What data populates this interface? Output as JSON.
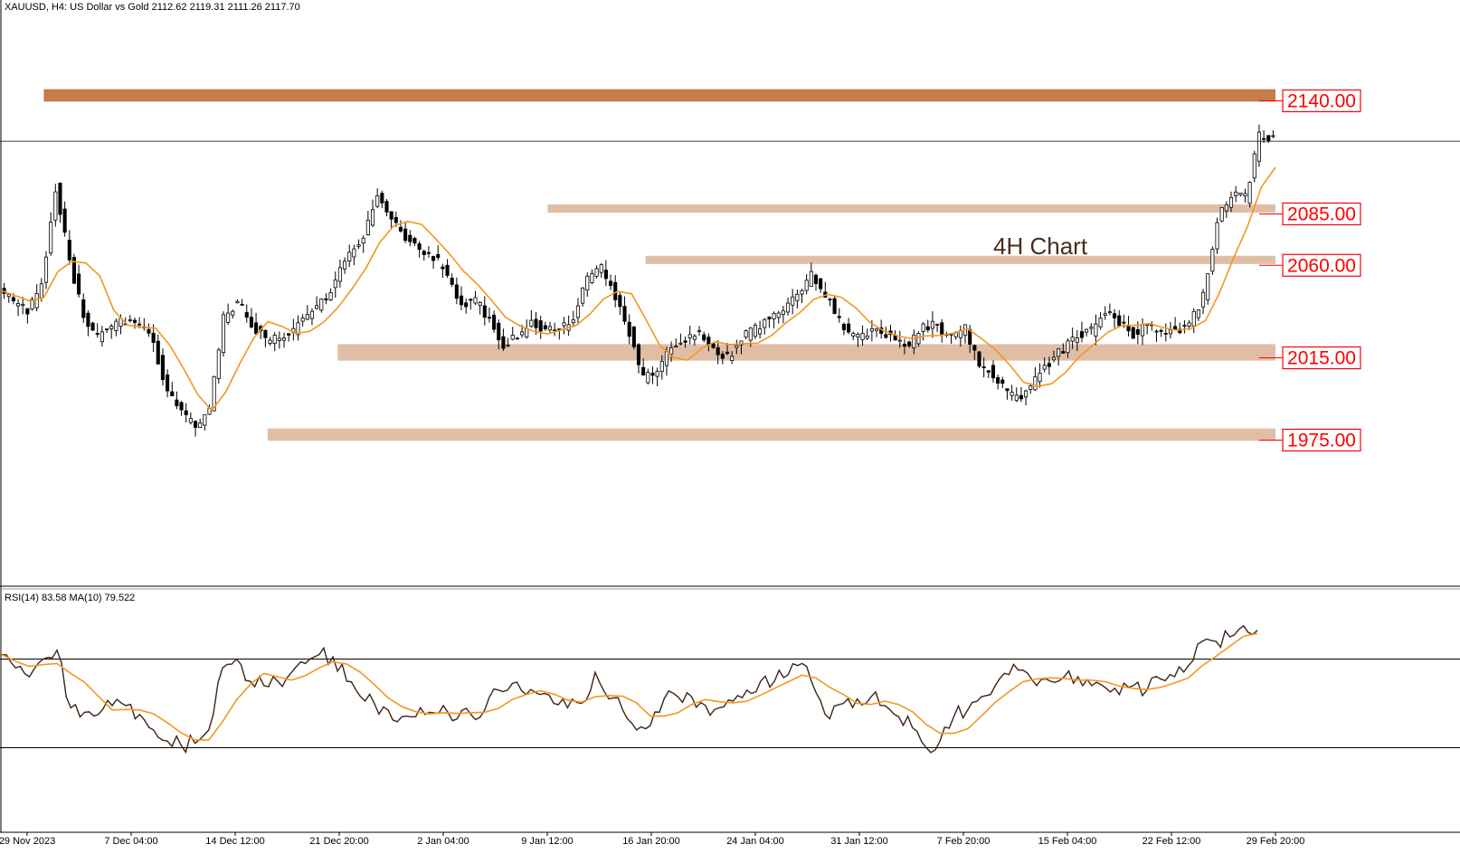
{
  "header": {
    "price_info": "XAUUSD, H4:  US Dollar vs Gold  2112.62 2119.31 2111.26 2117.70"
  },
  "annotation": {
    "label": "4H Chart"
  },
  "rsi_panel": {
    "header": "RSI(14) 83.58 MA(10) 79.522"
  },
  "colors": {
    "background": "#ffffff",
    "candle": "#000000",
    "ma": "#f5961e",
    "zone_light": "#e0bea6",
    "zone_dark": "#c67b4a",
    "label_text": "#ff0000",
    "label_border": "#ff0000",
    "annotation_text": "#4a2d1a",
    "rsi_line": "#3c2414"
  },
  "chart_data": [
    {
      "type": "candlestick",
      "symbol": "XAUUSD",
      "timeframe": "H4",
      "ylim": [
        1940,
        2160
      ],
      "x_tick_labels": [
        "29 Nov 2023",
        "7 Dec 04:00",
        "14 Dec 12:00",
        "21 Dec 20:00",
        "2 Jan 04:00",
        "9 Jan 12:00",
        "16 Jan 20:00",
        "24 Jan 04:00",
        "31 Jan 12:00",
        "7 Feb 20:00",
        "15 Feb 04:00",
        "22 Feb 12:00",
        "29 Feb 20:00"
      ],
      "current_price": 2117.7,
      "zones": [
        {
          "label": "2140.00",
          "price": 2140.0,
          "thickness": 6,
          "style": "dark",
          "start_index": 3
        },
        {
          "label": "2085.00",
          "price": 2085.0,
          "thickness": 4,
          "style": "light",
          "start_index": 39
        },
        {
          "label": "2060.00",
          "price": 2060.0,
          "thickness": 4,
          "style": "light",
          "start_index": 46
        },
        {
          "label": "2015.00",
          "price": 2015.0,
          "thickness": 8,
          "style": "light",
          "start_index": 24
        },
        {
          "label": "1975.00",
          "price": 1975.0,
          "thickness": 6,
          "style": "light",
          "start_index": 19
        }
      ],
      "closes": [
        2045,
        2040,
        2035,
        2047,
        2095,
        2060,
        2032,
        2022,
        2028,
        2031,
        2028,
        2020,
        1995,
        1985,
        1978,
        1989,
        2031,
        2040,
        2028,
        2021,
        2022,
        2026,
        2032,
        2039,
        2050,
        2062,
        2072,
        2090,
        2082,
        2071,
        2066,
        2062,
        2052,
        2038,
        2040,
        2031,
        2019,
        2022,
        2029,
        2026,
        2027,
        2030,
        2051,
        2056,
        2042,
        2025,
        2002,
        2005,
        2018,
        2020,
        2025,
        2018,
        2012,
        2022,
        2026,
        2033,
        2036,
        2042,
        2052,
        2043,
        2030,
        2022,
        2024,
        2026,
        2020,
        2017,
        2029,
        2027,
        2024,
        2026,
        2010,
        2005,
        1995,
        1992,
        2002,
        2010,
        2017,
        2023,
        2025,
        2034,
        2030,
        2024,
        2028,
        2026,
        2025,
        2028,
        2043,
        2080,
        2092,
        2090,
        2120,
        2118
      ]
    },
    {
      "type": "line",
      "name": "RSI(14)",
      "ylim": [
        0,
        100
      ],
      "levels": [
        70,
        30
      ],
      "x_tick_labels": [
        "29 Nov 2023",
        "7 Dec 04:00",
        "14 Dec 12:00",
        "21 Dec 20:00",
        "2 Jan 04:00",
        "9 Jan 12:00",
        "16 Jan 20:00",
        "24 Jan 04:00",
        "31 Jan 12:00",
        "7 Feb 20:00",
        "15 Feb 04:00",
        "22 Feb 12:00",
        "29 Feb 20:00"
      ],
      "values": [
        72,
        66,
        62,
        70,
        74,
        48,
        46,
        45,
        49,
        49,
        45,
        38,
        33,
        31,
        32,
        38,
        66,
        70,
        60,
        58,
        60,
        64,
        68,
        72,
        71,
        60,
        53,
        50,
        47,
        44,
        44,
        46,
        49,
        43,
        45,
        47,
        56,
        59,
        54,
        54,
        50,
        48,
        50,
        64,
        52,
        47,
        38,
        40,
        52,
        53,
        53,
        49,
        48,
        51,
        56,
        60,
        60,
        63,
        68,
        55,
        43,
        50,
        52,
        53,
        49,
        44,
        39,
        30,
        33,
        44,
        47,
        53,
        58,
        63,
        65,
        58,
        60,
        62,
        62,
        58,
        57,
        54,
        58,
        56,
        61,
        62,
        67,
        78,
        78,
        80,
        85,
        83
      ]
    }
  ]
}
